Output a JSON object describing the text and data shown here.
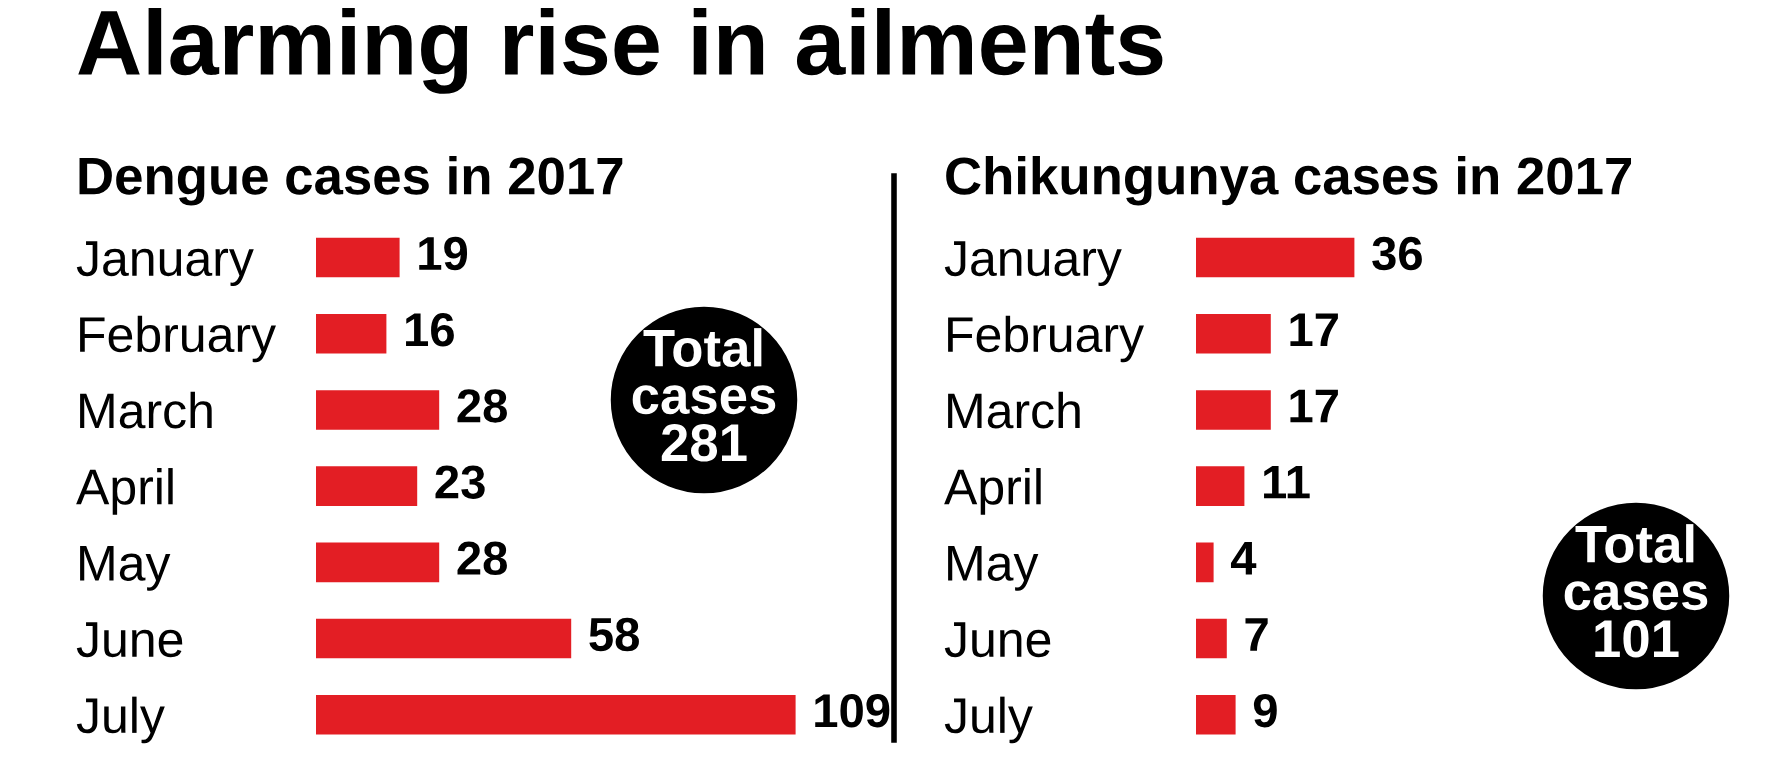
{
  "chart_data": [
    {
      "type": "bar",
      "orientation": "horizontal",
      "title": "Alarming rise in ailments",
      "subtitle": "Dengue cases in 2017",
      "categories": [
        "January",
        "February",
        "March",
        "April",
        "May",
        "June",
        "July"
      ],
      "values": [
        19,
        16,
        28,
        23,
        28,
        58,
        109
      ],
      "color": "#e31e24",
      "data_labels": true,
      "grid": false,
      "legend": false,
      "annotations": [
        "Total\ncases\n281"
      ]
    },
    {
      "type": "bar",
      "orientation": "horizontal",
      "subtitle": "Chikungunya cases in 2017",
      "categories": [
        "January",
        "February",
        "March",
        "April",
        "May",
        "June",
        "July"
      ],
      "values": [
        36,
        17,
        17,
        11,
        4,
        7,
        9
      ],
      "color": "#e31e24",
      "data_labels": true,
      "grid": false,
      "legend": false,
      "annotations": [
        "Total\ncases\n101"
      ]
    }
  ]
}
